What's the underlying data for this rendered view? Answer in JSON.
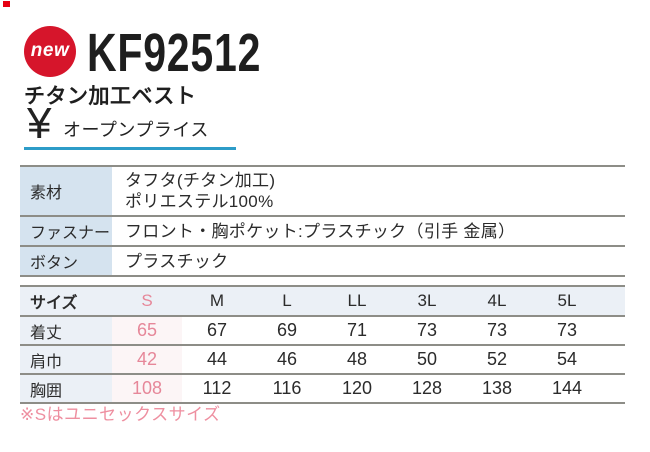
{
  "header": {
    "badge_label": "new",
    "product_code": "KF92512",
    "product_name": "チタン加工ベスト",
    "currency_symbol": "¥",
    "price_label": "オープンプライス"
  },
  "colors": {
    "badge_red": "#d6152b",
    "underline_blue": "#2d9cc8",
    "spec_label_bg": "#d5e3ef",
    "size_header_bg": "#ebf0f6",
    "s_column_bg": "#fcf5f6",
    "pink_text": "#e68799",
    "border_gray": "#8d8d87"
  },
  "spec_table": {
    "rows": [
      {
        "label": "素材",
        "value_lines": [
          "タフタ(チタン加工)",
          "ポリエステル100%"
        ]
      },
      {
        "label": "ファスナー",
        "value_lines": [
          "フロント・胸ポケット:プラスチック（引手 金属）"
        ]
      },
      {
        "label": "ボタン",
        "value_lines": [
          "プラスチック"
        ]
      }
    ]
  },
  "size_table": {
    "header_label": "サイズ",
    "sizes": [
      "S",
      "M",
      "L",
      "LL",
      "3L",
      "4L",
      "5L"
    ],
    "rows": [
      {
        "label": "着丈",
        "values": [
          "65",
          "67",
          "69",
          "71",
          "73",
          "73",
          "73"
        ]
      },
      {
        "label": "肩巾",
        "values": [
          "42",
          "44",
          "46",
          "48",
          "50",
          "52",
          "54"
        ]
      },
      {
        "label": "胸囲",
        "values": [
          "108",
          "112",
          "116",
          "120",
          "128",
          "138",
          "144"
        ]
      }
    ]
  },
  "note": "※Sはユニセックスサイズ"
}
